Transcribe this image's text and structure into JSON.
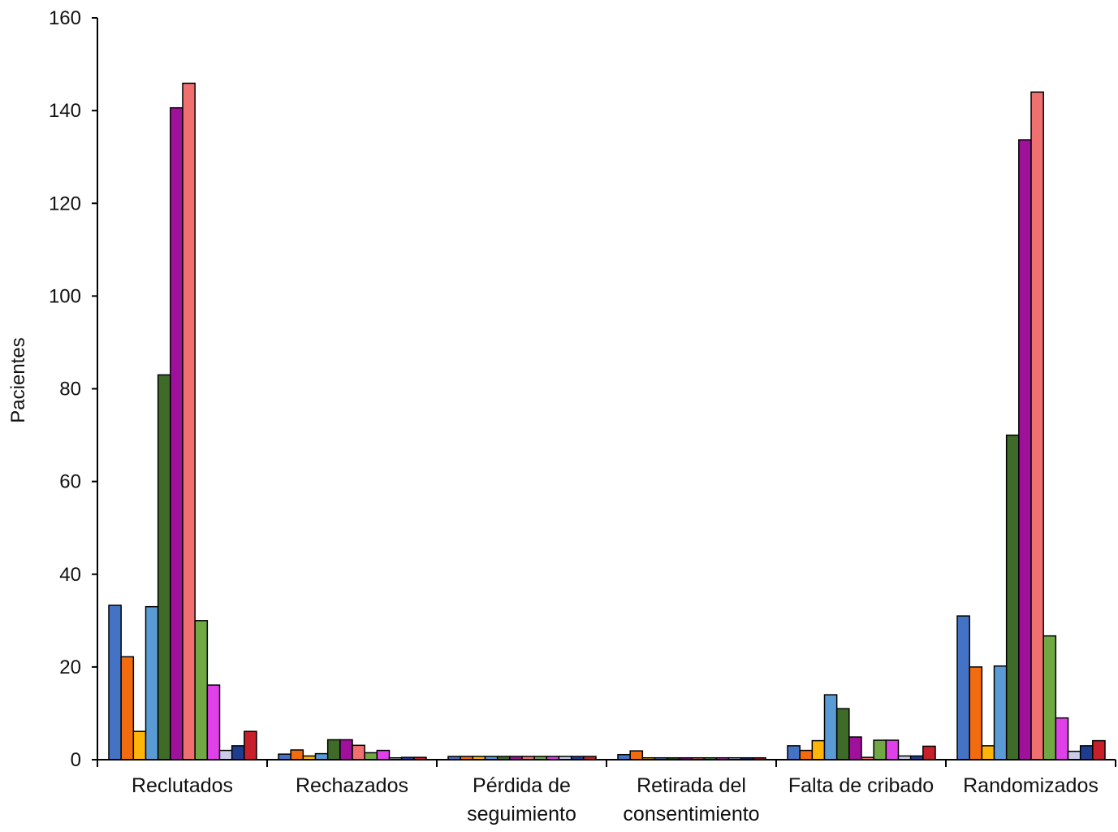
{
  "chart_data": {
    "type": "bar",
    "title": "",
    "xlabel": "",
    "ylabel": "Pacientes",
    "ylim": [
      0,
      160
    ],
    "yticks": [
      0,
      20,
      40,
      60,
      80,
      100,
      120,
      140,
      160
    ],
    "grid": false,
    "legend": "none",
    "categories": [
      [
        "Reclutados"
      ],
      [
        "Rechazados"
      ],
      [
        "Pérdida de",
        "seguimiento"
      ],
      [
        "Retirada del",
        "consentimiento"
      ],
      [
        "Falta de cribado"
      ],
      [
        "Randomizados"
      ]
    ],
    "series": [
      {
        "color": "#4472c4",
        "values": [
          33.3,
          1.2,
          0.7,
          1.1,
          3.0,
          31.0
        ]
      },
      {
        "color": "#f26c0f",
        "values": [
          22.2,
          2.1,
          0.7,
          1.9,
          2.0,
          20.0
        ]
      },
      {
        "color": "#ffb40a",
        "values": [
          6.1,
          0.8,
          0.7,
          0.4,
          4.1,
          3.0
        ]
      },
      {
        "color": "#5b9bd5",
        "values": [
          33.0,
          1.3,
          0.7,
          0.4,
          14.0,
          20.2
        ]
      },
      {
        "color": "#3e6b27",
        "values": [
          83.0,
          4.3,
          0.7,
          0.4,
          11.0,
          70.0
        ]
      },
      {
        "color": "#a0119b",
        "values": [
          140.6,
          4.3,
          0.7,
          0.4,
          4.9,
          133.7
        ]
      },
      {
        "color": "#f07070",
        "values": [
          145.9,
          3.1,
          0.7,
          0.4,
          0.5,
          144.0
        ]
      },
      {
        "color": "#70a844",
        "values": [
          30.0,
          1.5,
          0.7,
          0.4,
          4.2,
          26.7
        ]
      },
      {
        "color": "#e040e8",
        "values": [
          16.1,
          2.0,
          0.7,
          0.4,
          4.2,
          9.0
        ]
      },
      {
        "color": "#c9cbe8",
        "values": [
          2.0,
          0.4,
          0.7,
          0.4,
          0.8,
          1.8
        ]
      },
      {
        "color": "#1f3d8f",
        "values": [
          3.0,
          0.5,
          0.7,
          0.4,
          0.8,
          3.0
        ]
      },
      {
        "color": "#c8202a",
        "values": [
          6.1,
          0.5,
          0.7,
          0.4,
          2.9,
          4.1
        ]
      }
    ]
  }
}
